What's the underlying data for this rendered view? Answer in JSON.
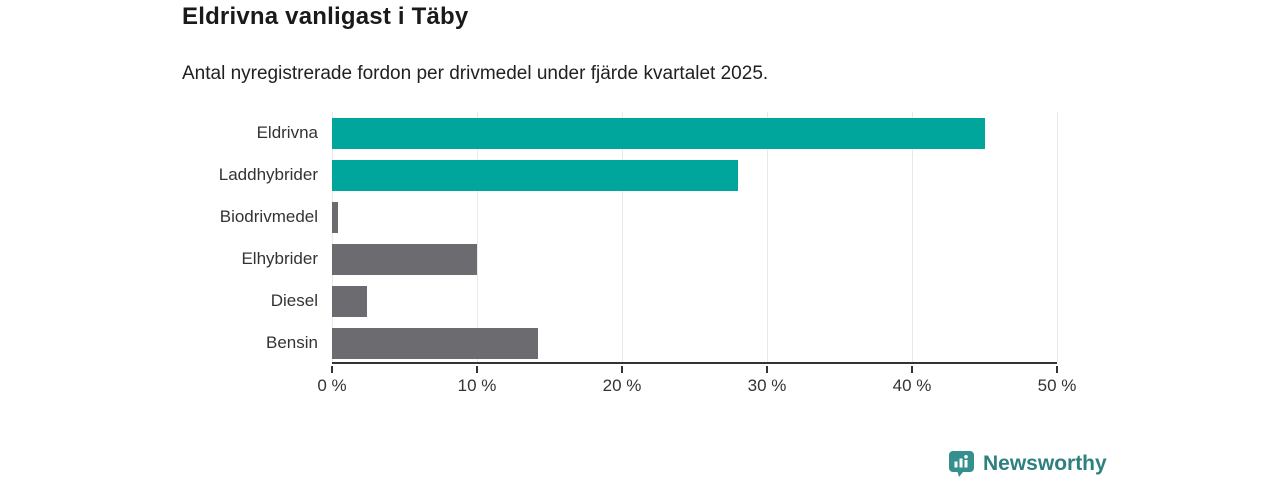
{
  "header": {
    "title": "Eldrivna vanligast i Täby",
    "subtitle": "Antal nyregistrerade fordon per drivmedel under fjärde kvartalet 2025."
  },
  "chart_data": {
    "type": "bar",
    "orientation": "horizontal",
    "title": "Eldrivna vanligast i Täby",
    "subtitle": "Antal nyregistrerade fordon per drivmedel under fjärde kvartalet 2025.",
    "categories": [
      "Eldrivna",
      "Laddhybrider",
      "Biodrivmedel",
      "Elhybrider",
      "Diesel",
      "Bensin"
    ],
    "values": [
      45,
      28,
      0.4,
      10,
      2.4,
      14.2
    ],
    "unit": "%",
    "bar_colors": [
      "#00a59b",
      "#00a59b",
      "#6c6c70",
      "#6c6c70",
      "#6c6c70",
      "#6c6c70"
    ],
    "xlim": [
      0,
      50
    ],
    "x_ticks": [
      {
        "value": 0,
        "label": "0 %"
      },
      {
        "value": 10,
        "label": "10 %"
      },
      {
        "value": 20,
        "label": "20 %"
      },
      {
        "value": 30,
        "label": "30 %"
      },
      {
        "value": 40,
        "label": "40 %"
      },
      {
        "value": 50,
        "label": "50 %"
      }
    ],
    "grid": true,
    "legend": "none"
  },
  "colors": {
    "teal": "#00a59b",
    "gray": "#6c6c70",
    "axis": "#333333",
    "gridline": "#e9e9e9",
    "brand_teal": "#2d807e",
    "logo_bubble": "#35908d"
  },
  "footer": {
    "brand_name": "Newsworthy",
    "logo_icon": "bar-chart-speech-bubble-icon"
  }
}
